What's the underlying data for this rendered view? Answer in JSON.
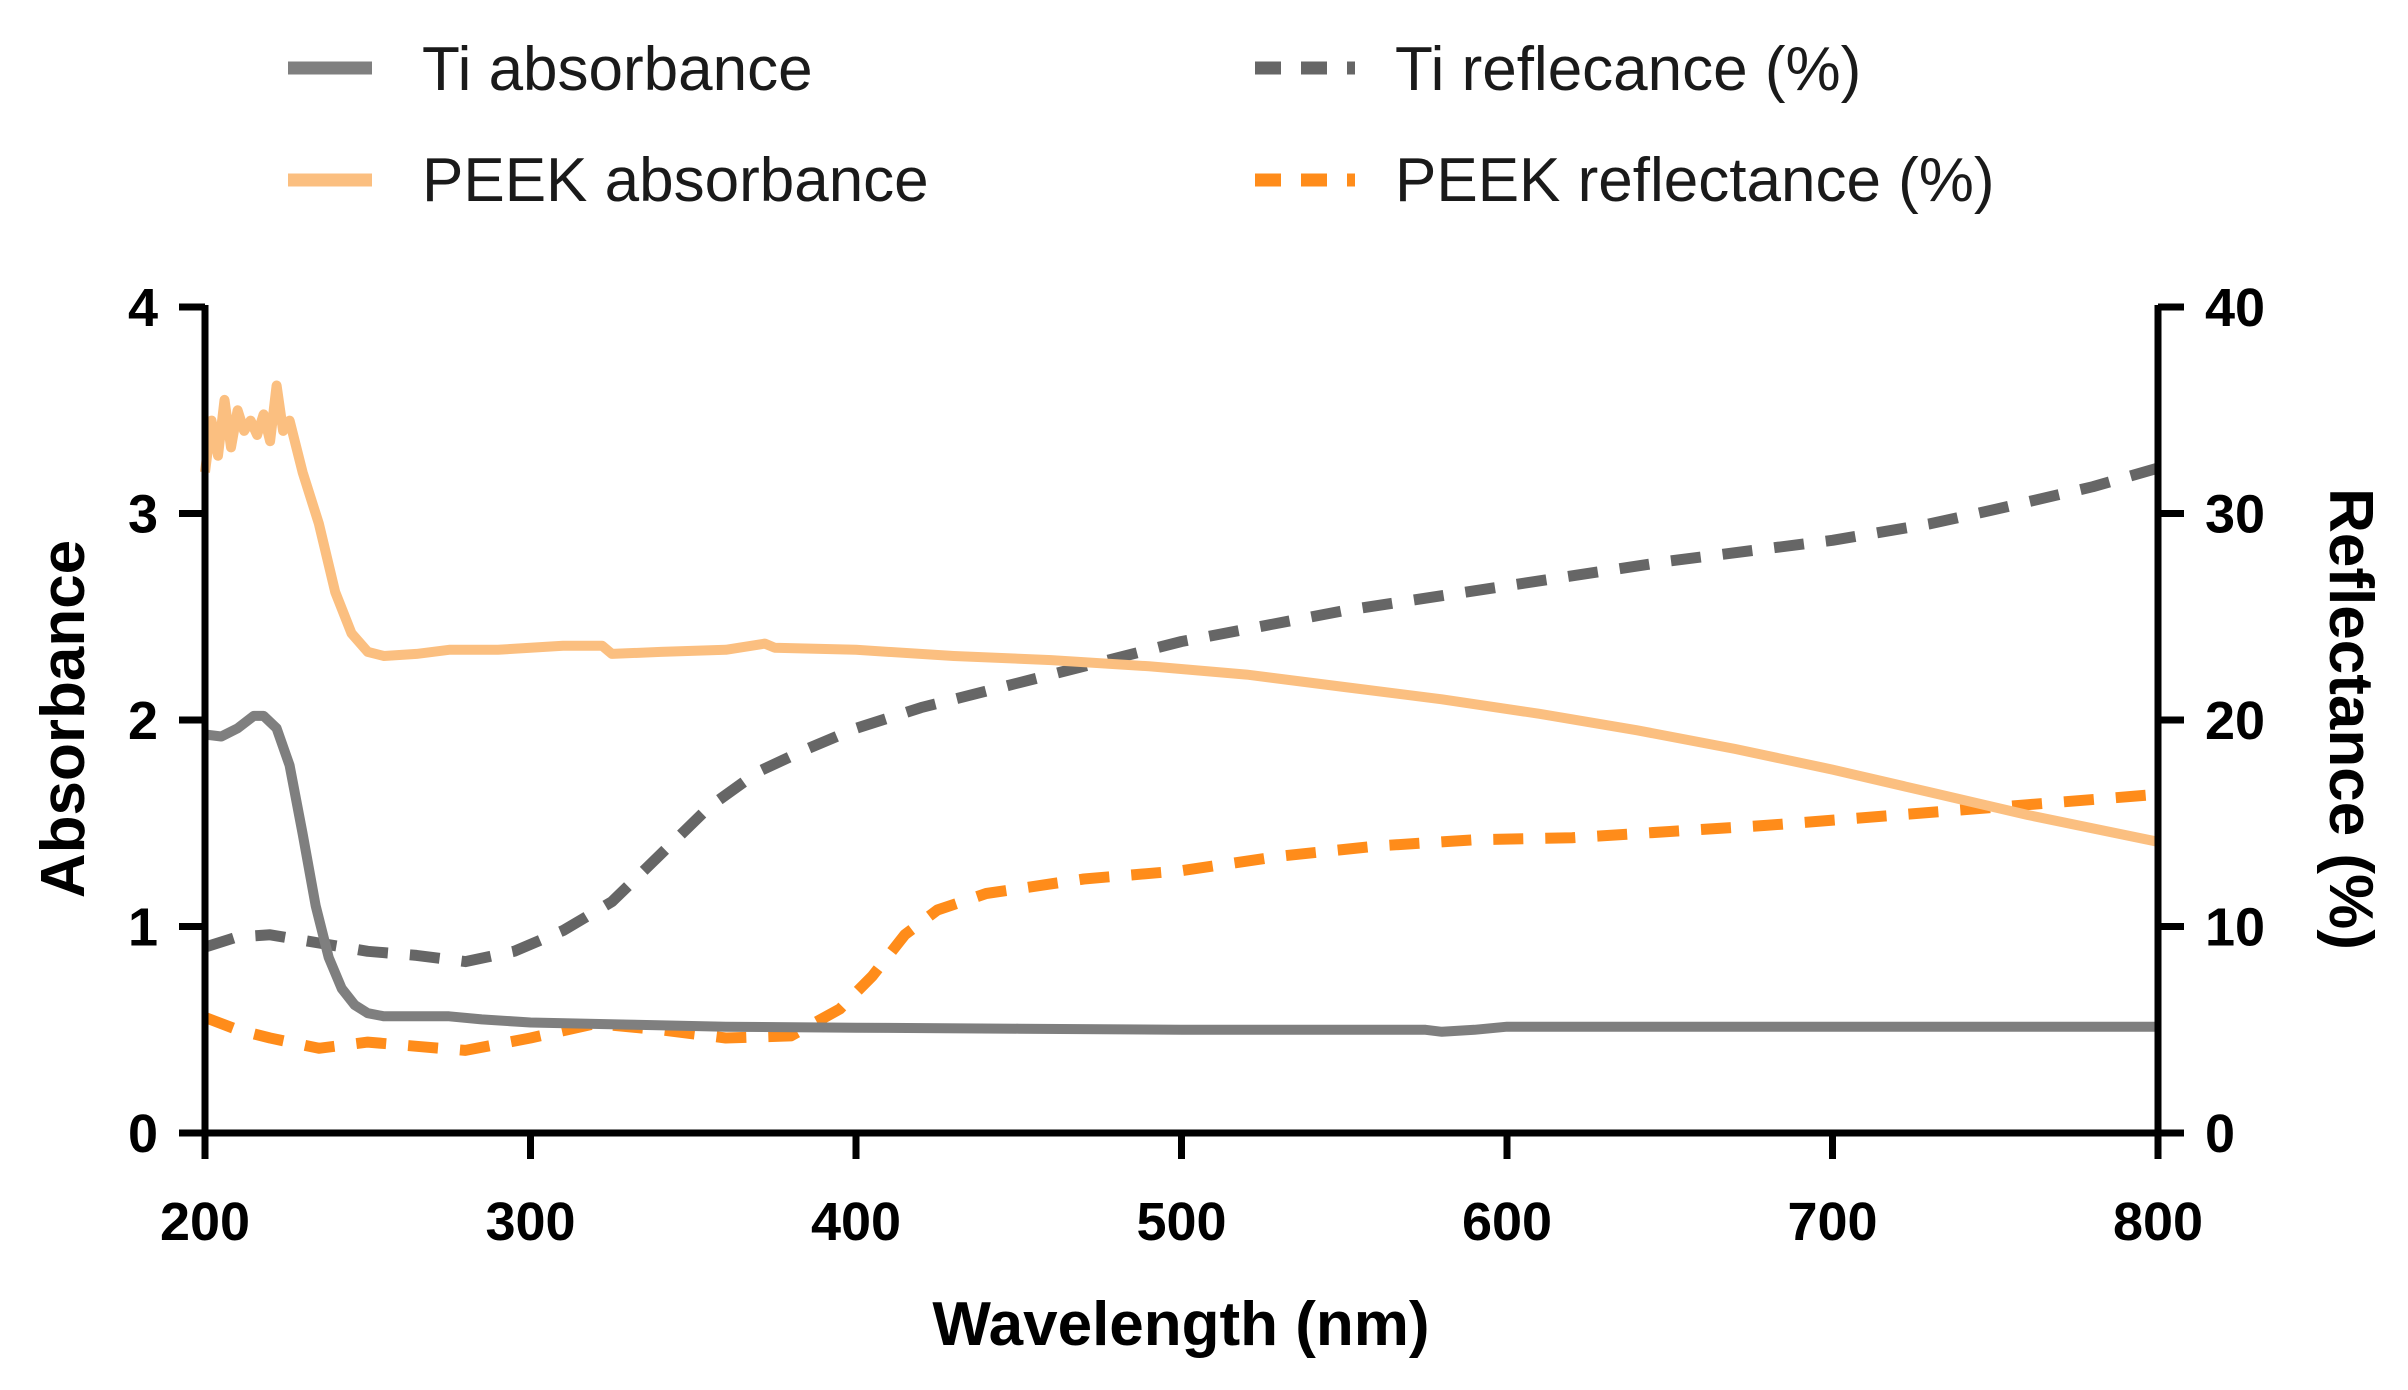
{
  "chart_data": {
    "type": "line",
    "title": "",
    "xlabel": "Wavelength (nm)",
    "ylabel": "Absorbance",
    "y2label": "Reflectance (%)",
    "xlim": [
      200,
      800
    ],
    "ylim": [
      0,
      4
    ],
    "y2lim": [
      0,
      40
    ],
    "x_ticks": [
      200,
      300,
      400,
      500,
      600,
      700,
      800
    ],
    "y_ticks": [
      0,
      1,
      2,
      3,
      4
    ],
    "y2_ticks": [
      0,
      10,
      20,
      30,
      40
    ],
    "legend_position": "top",
    "series": [
      {
        "name": "Ti absorbance",
        "axis": "left",
        "color": "#7f7f7f",
        "dash": "solid",
        "points": [
          [
            200,
            1.93
          ],
          [
            205,
            1.92
          ],
          [
            210,
            1.96
          ],
          [
            215,
            2.02
          ],
          [
            218,
            2.02
          ],
          [
            222,
            1.96
          ],
          [
            226,
            1.78
          ],
          [
            230,
            1.45
          ],
          [
            234,
            1.1
          ],
          [
            238,
            0.85
          ],
          [
            242,
            0.7
          ],
          [
            246,
            0.62
          ],
          [
            250,
            0.58
          ],
          [
            255,
            0.565
          ],
          [
            265,
            0.565
          ],
          [
            275,
            0.565
          ],
          [
            285,
            0.55
          ],
          [
            300,
            0.535
          ],
          [
            330,
            0.525
          ],
          [
            360,
            0.515
          ],
          [
            400,
            0.51
          ],
          [
            450,
            0.505
          ],
          [
            500,
            0.5
          ],
          [
            550,
            0.5
          ],
          [
            575,
            0.5
          ],
          [
            580,
            0.49
          ],
          [
            590,
            0.5
          ],
          [
            600,
            0.515
          ],
          [
            650,
            0.515
          ],
          [
            700,
            0.515
          ],
          [
            750,
            0.515
          ],
          [
            800,
            0.515
          ]
        ]
      },
      {
        "name": "PEEK absorbance",
        "axis": "left",
        "color": "#fbbf80",
        "dash": "solid",
        "points": [
          [
            200,
            3.2
          ],
          [
            202,
            3.45
          ],
          [
            204,
            3.28
          ],
          [
            206,
            3.55
          ],
          [
            208,
            3.32
          ],
          [
            210,
            3.5
          ],
          [
            212,
            3.4
          ],
          [
            214,
            3.45
          ],
          [
            216,
            3.38
          ],
          [
            218,
            3.48
          ],
          [
            220,
            3.35
          ],
          [
            222,
            3.62
          ],
          [
            224,
            3.4
          ],
          [
            226,
            3.45
          ],
          [
            230,
            3.2
          ],
          [
            235,
            2.95
          ],
          [
            240,
            2.62
          ],
          [
            245,
            2.42
          ],
          [
            250,
            2.33
          ],
          [
            255,
            2.31
          ],
          [
            265,
            2.32
          ],
          [
            275,
            2.34
          ],
          [
            290,
            2.34
          ],
          [
            300,
            2.35
          ],
          [
            310,
            2.36
          ],
          [
            322,
            2.36
          ],
          [
            325,
            2.32
          ],
          [
            340,
            2.33
          ],
          [
            360,
            2.34
          ],
          [
            372,
            2.37
          ],
          [
            375,
            2.35
          ],
          [
            400,
            2.34
          ],
          [
            430,
            2.31
          ],
          [
            460,
            2.29
          ],
          [
            490,
            2.26
          ],
          [
            520,
            2.22
          ],
          [
            550,
            2.16
          ],
          [
            580,
            2.1
          ],
          [
            610,
            2.03
          ],
          [
            640,
            1.95
          ],
          [
            670,
            1.86
          ],
          [
            700,
            1.76
          ],
          [
            730,
            1.65
          ],
          [
            760,
            1.54
          ],
          [
            800,
            1.41
          ]
        ]
      },
      {
        "name": "Ti reflecance (%)",
        "axis": "right",
        "color": "#666666",
        "dash": "dashed",
        "points": [
          [
            200,
            9.0
          ],
          [
            210,
            9.5
          ],
          [
            220,
            9.6
          ],
          [
            235,
            9.2
          ],
          [
            250,
            8.8
          ],
          [
            265,
            8.6
          ],
          [
            280,
            8.3
          ],
          [
            295,
            8.8
          ],
          [
            310,
            9.8
          ],
          [
            325,
            11.2
          ],
          [
            340,
            13.5
          ],
          [
            355,
            15.8
          ],
          [
            370,
            17.5
          ],
          [
            385,
            18.6
          ],
          [
            400,
            19.6
          ],
          [
            420,
            20.6
          ],
          [
            450,
            21.8
          ],
          [
            475,
            22.8
          ],
          [
            500,
            23.8
          ],
          [
            550,
            25.3
          ],
          [
            600,
            26.5
          ],
          [
            650,
            27.7
          ],
          [
            700,
            28.7
          ],
          [
            730,
            29.5
          ],
          [
            750,
            30.2
          ],
          [
            780,
            31.3
          ],
          [
            800,
            32.2
          ]
        ]
      },
      {
        "name": "PEEK reflectance (%)",
        "axis": "right",
        "color": "#ff8c1a",
        "dash": "dashed",
        "points": [
          [
            200,
            5.6
          ],
          [
            210,
            5.0
          ],
          [
            220,
            4.6
          ],
          [
            235,
            4.1
          ],
          [
            250,
            4.4
          ],
          [
            265,
            4.2
          ],
          [
            280,
            4.0
          ],
          [
            300,
            4.6
          ],
          [
            320,
            5.3
          ],
          [
            340,
            5.0
          ],
          [
            360,
            4.6
          ],
          [
            380,
            4.7
          ],
          [
            395,
            6.0
          ],
          [
            405,
            7.6
          ],
          [
            415,
            9.6
          ],
          [
            425,
            10.8
          ],
          [
            440,
            11.6
          ],
          [
            470,
            12.3
          ],
          [
            500,
            12.7
          ],
          [
            530,
            13.4
          ],
          [
            560,
            13.9
          ],
          [
            590,
            14.2
          ],
          [
            620,
            14.3
          ],
          [
            650,
            14.6
          ],
          [
            680,
            14.9
          ],
          [
            720,
            15.4
          ],
          [
            760,
            15.9
          ],
          [
            800,
            16.4
          ]
        ]
      }
    ]
  }
}
